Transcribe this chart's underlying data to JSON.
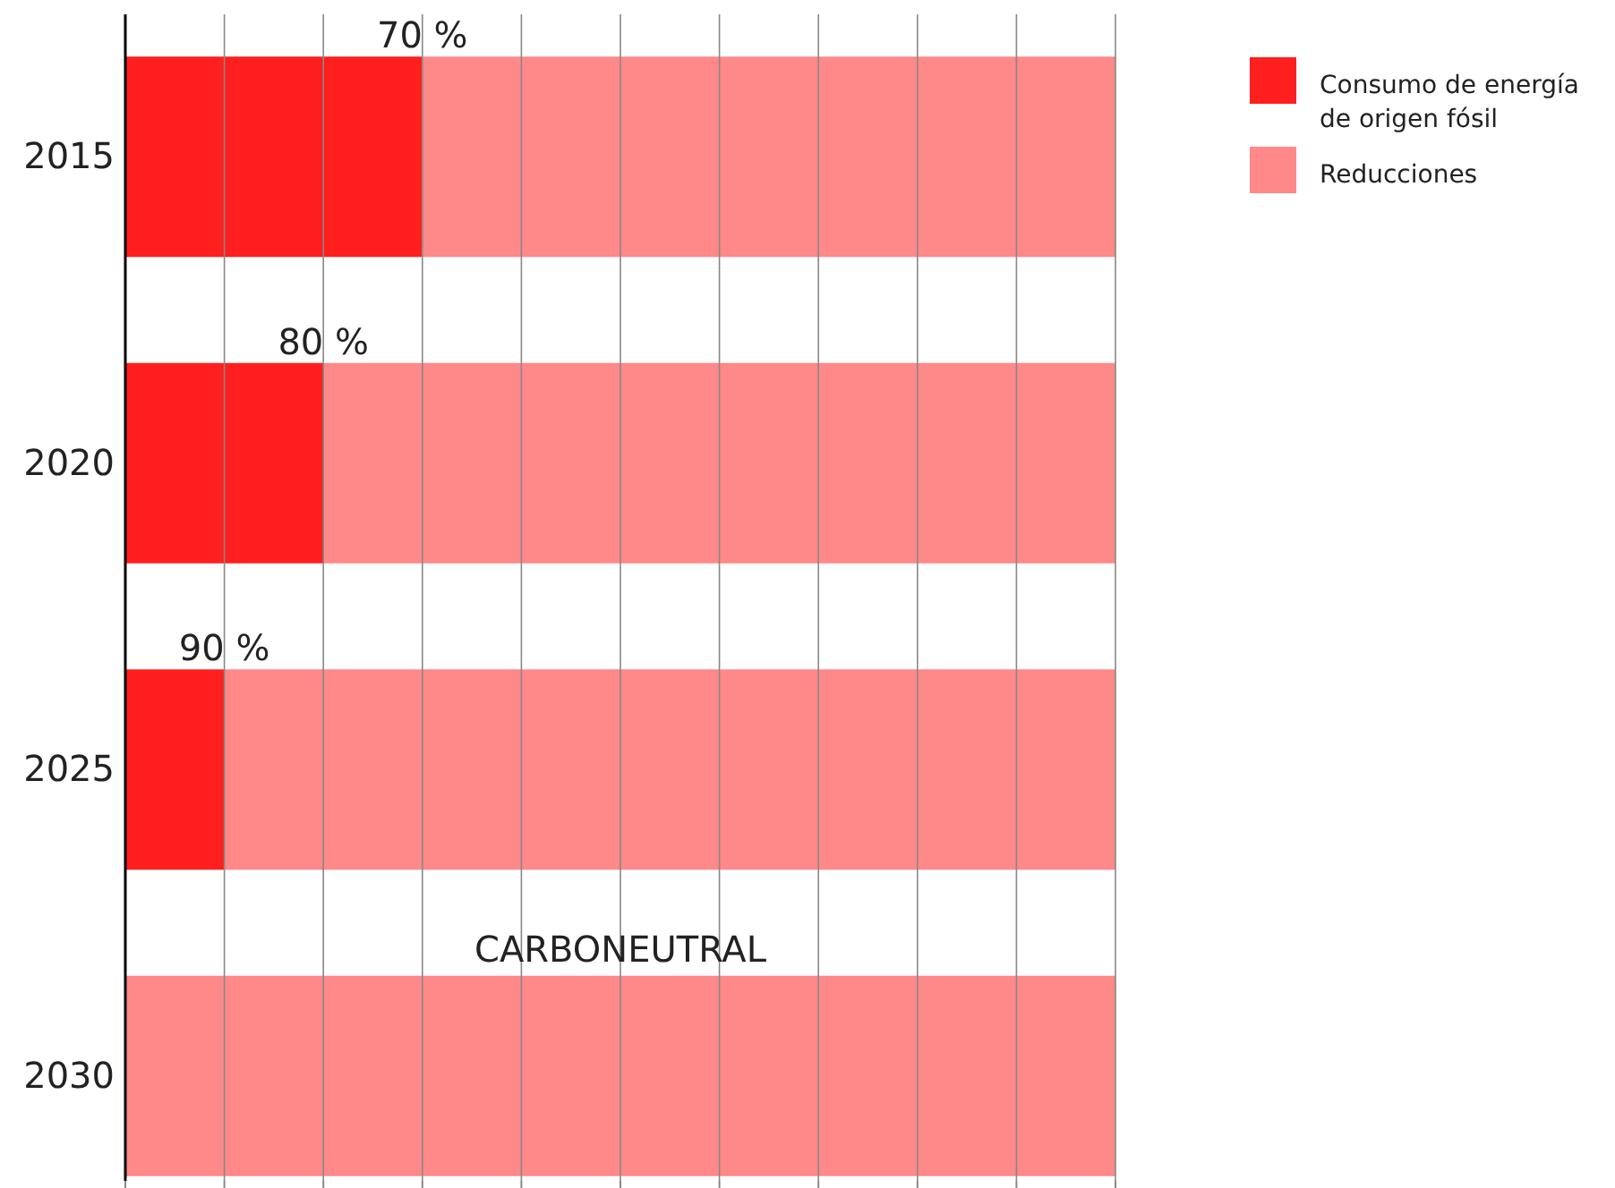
{
  "chart_data": {
    "type": "bar",
    "orientation": "horizontal",
    "stacked": true,
    "categories": [
      "2015",
      "2020",
      "2025",
      "2030"
    ],
    "series": [
      {
        "name": "Consumo de energía de origen fósil",
        "color": "#ff1f1f",
        "values": [
          30,
          20,
          10,
          0
        ]
      },
      {
        "name": "Reducciones",
        "color": "#ff8888",
        "values": [
          70,
          80,
          90,
          100
        ],
        "value_labels": [
          "70 %",
          "80 %",
          "90 %",
          null
        ]
      }
    ],
    "xlim": [
      0,
      100
    ],
    "xticks": [
      {
        "value": 0,
        "label": null
      },
      {
        "value": 10,
        "label": null
      },
      {
        "value": 20,
        "label": null
      },
      {
        "value": 30,
        "label": null
      },
      {
        "value": 40,
        "label": null
      },
      {
        "value": 50,
        "label": null
      },
      {
        "value": 60,
        "label": null
      },
      {
        "value": 70,
        "label": null
      },
      {
        "value": 80,
        "label": null
      },
      {
        "value": 90,
        "label": null
      },
      {
        "value": 100,
        "label": null
      }
    ],
    "tick_labels": "y",
    "grid": "x",
    "legend": "top right",
    "annotations": [
      "CARBONEUTRAL"
    ]
  }
}
